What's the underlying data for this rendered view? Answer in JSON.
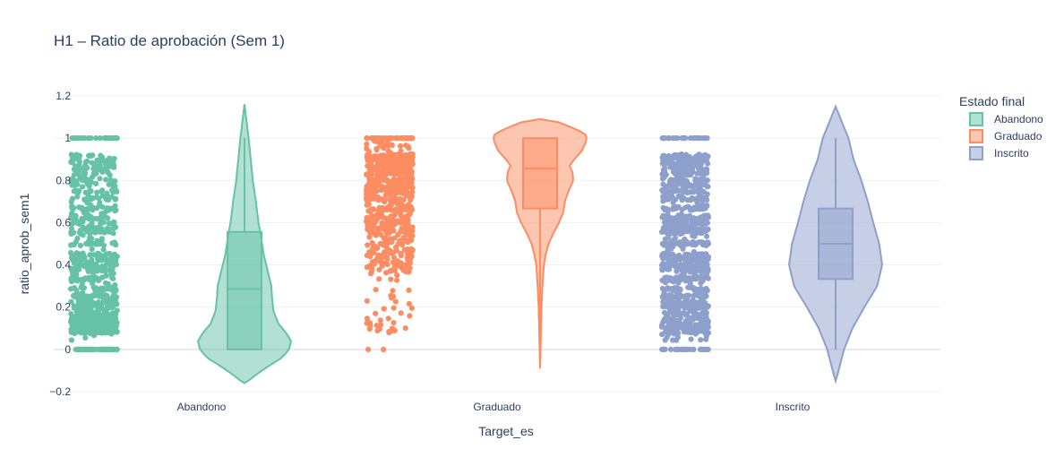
{
  "chart_data": {
    "type": "violin",
    "title": "H1 – Ratio de aprobación (Sem 1)",
    "xlabel": "Target_es",
    "ylabel": "ratio_aprob_sem1",
    "categories": [
      "Abandono",
      "Graduado",
      "Inscrito"
    ],
    "ylim": [
      -0.2,
      1.2
    ],
    "yticks": [
      -0.2,
      0,
      0.2,
      0.4,
      0.6,
      0.8,
      1,
      1.2
    ],
    "ytick_labels": [
      "−0.2",
      "0",
      "0.2",
      "0.4",
      "0.6",
      "0.8",
      "1",
      "1.2"
    ],
    "grid": true,
    "legend": {
      "title": "Estado final",
      "placement": "right"
    },
    "series": [
      {
        "name": "Abandono",
        "color": "#66c2a5",
        "box": {
          "min": 0,
          "q1": 0,
          "median": 0.286,
          "q3": 0.556,
          "max": 1
        },
        "kde_range": [
          -0.16,
          1.16
        ],
        "density": [
          [
            -0.16,
            0.02
          ],
          [
            -0.12,
            0.22
          ],
          [
            -0.08,
            0.46
          ],
          [
            -0.04,
            0.72
          ],
          [
            0,
            0.86
          ],
          [
            0.04,
            0.9
          ],
          [
            0.08,
            0.8
          ],
          [
            0.12,
            0.66
          ],
          [
            0.18,
            0.56
          ],
          [
            0.25,
            0.53
          ],
          [
            0.3,
            0.52
          ],
          [
            0.35,
            0.47
          ],
          [
            0.4,
            0.42
          ],
          [
            0.45,
            0.37
          ],
          [
            0.5,
            0.34
          ],
          [
            0.55,
            0.31
          ],
          [
            0.6,
            0.27
          ],
          [
            0.7,
            0.22
          ],
          [
            0.8,
            0.16
          ],
          [
            0.9,
            0.12
          ],
          [
            1.0,
            0.08
          ],
          [
            1.08,
            0.04
          ],
          [
            1.16,
            0.0
          ]
        ]
      },
      {
        "name": "Graduado",
        "color": "#fc8d62",
        "box": {
          "min": 0,
          "q1": 0.667,
          "median": 0.857,
          "q3": 1,
          "max": 1
        },
        "kde_range": [
          -0.09,
          1.09
        ],
        "density": [
          [
            -0.09,
            0.0
          ],
          [
            0,
            0.01
          ],
          [
            0.1,
            0.02
          ],
          [
            0.2,
            0.03
          ],
          [
            0.3,
            0.05
          ],
          [
            0.4,
            0.08
          ],
          [
            0.45,
            0.12
          ],
          [
            0.5,
            0.18
          ],
          [
            0.55,
            0.28
          ],
          [
            0.6,
            0.4
          ],
          [
            0.65,
            0.49
          ],
          [
            0.7,
            0.52
          ],
          [
            0.75,
            0.6
          ],
          [
            0.8,
            0.7
          ],
          [
            0.84,
            0.68
          ],
          [
            0.87,
            0.62
          ],
          [
            0.9,
            0.72
          ],
          [
            0.94,
            0.88
          ],
          [
            0.98,
            0.96
          ],
          [
            1.0,
            0.98
          ],
          [
            1.02,
            0.95
          ],
          [
            1.05,
            0.68
          ],
          [
            1.08,
            0.34
          ],
          [
            1.09,
            0.0
          ]
        ]
      },
      {
        "name": "Inscrito",
        "color": "#8da0cb",
        "box": {
          "min": 0,
          "q1": 0.333,
          "median": 0.5,
          "q3": 0.667,
          "max": 1
        },
        "kde_range": [
          -0.15,
          1.15
        ],
        "density": [
          [
            -0.15,
            0.0
          ],
          [
            -0.1,
            0.06
          ],
          [
            0,
            0.17
          ],
          [
            0.1,
            0.34
          ],
          [
            0.2,
            0.58
          ],
          [
            0.3,
            0.84
          ],
          [
            0.4,
            0.94
          ],
          [
            0.5,
            0.88
          ],
          [
            0.6,
            0.76
          ],
          [
            0.7,
            0.65
          ],
          [
            0.8,
            0.52
          ],
          [
            0.9,
            0.36
          ],
          [
            1.0,
            0.26
          ],
          [
            1.08,
            0.12
          ],
          [
            1.15,
            0.0
          ]
        ]
      }
    ]
  }
}
